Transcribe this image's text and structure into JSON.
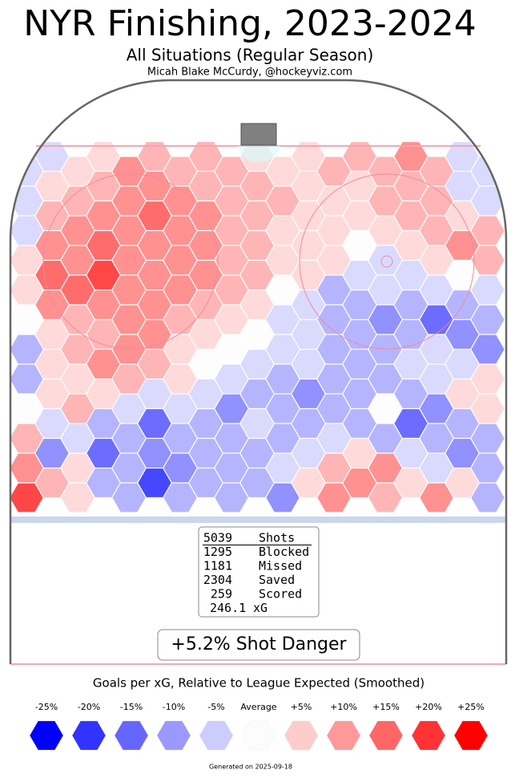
{
  "title": "NYR Finishing, 2023-2024",
  "subtitle": "All Situations (Regular Season)",
  "credit": "Micah Blake McCurdy, @hockeyviz.com",
  "hex_values": [
    [
      -5,
      5,
      10,
      10,
      5,
      5,
      10,
      15,
      -5
    ],
    [
      -5,
      5,
      15,
      10,
      10,
      5,
      10,
      10,
      10,
      -5
    ],
    [
      5,
      10,
      15,
      10,
      10,
      5,
      5,
      10,
      -5
    ],
    [
      -5,
      10,
      15,
      15,
      10,
      10,
      5,
      10,
      10,
      -5
    ],
    [
      10,
      15,
      20,
      15,
      10,
      5,
      5,
      10,
      5
    ],
    [
      -5,
      15,
      15,
      15,
      10,
      5,
      5,
      5,
      10,
      10
    ],
    [
      15,
      20,
      15,
      15,
      10,
      5,
      0,
      5,
      15
    ],
    [
      5,
      15,
      15,
      15,
      10,
      5,
      5,
      -5,
      5,
      10
    ],
    [
      20,
      25,
      15,
      15,
      10,
      5,
      -5,
      -5,
      0
    ],
    [
      5,
      20,
      15,
      15,
      10,
      0,
      -10,
      -5,
      -5,
      -5
    ],
    [
      15,
      15,
      15,
      10,
      5,
      -5,
      -10,
      -10,
      -10
    ],
    [
      0,
      10,
      15,
      10,
      5,
      -5,
      -10,
      -15,
      -20,
      -10
    ],
    [
      5,
      10,
      15,
      5,
      0,
      -5,
      -10,
      -10,
      -15
    ],
    [
      -10,
      10,
      15,
      5,
      0,
      -5,
      -10,
      -10,
      -5,
      -15
    ],
    [
      5,
      15,
      10,
      0,
      -5,
      -5,
      -10,
      -5,
      -5
    ],
    [
      -10,
      5,
      10,
      5,
      -5,
      -10,
      -10,
      -10,
      -5,
      5
    ],
    [
      5,
      5,
      -5,
      -5,
      -10,
      -15,
      -10,
      -10,
      5
    ],
    [
      0,
      10,
      -5,
      -5,
      -15,
      -10,
      -10,
      0,
      -15,
      5
    ],
    [
      -5,
      -10,
      -20,
      -10,
      -5,
      -10,
      -10,
      -20,
      -10
    ],
    [
      10,
      -5,
      -10,
      -10,
      -10,
      -10,
      -5,
      -10,
      -10,
      -10
    ],
    [
      -15,
      -20,
      -15,
      -10,
      -10,
      -5,
      5,
      -5,
      -15
    ],
    [
      15,
      5,
      -10,
      -15,
      -10,
      -5,
      10,
      15,
      -5,
      -10
    ],
    [
      10,
      -10,
      -25,
      -10,
      -10,
      5,
      15,
      5,
      5
    ],
    [
      25,
      5,
      -10,
      -10,
      -10,
      -15,
      15,
      10,
      15,
      -10
    ]
  ],
  "stats": [
    {
      "count": 5039,
      "label": "Shots"
    },
    {
      "count": 1295,
      "label": "Blocked"
    },
    {
      "count": 1181,
      "label": "Missed"
    },
    {
      "count": 2304,
      "label": "Saved"
    },
    {
      "count": 259,
      "label": "Scored"
    },
    {
      "count": 246.1,
      "label": "xG"
    }
  ],
  "shot_danger": "+5.2% Shot Danger",
  "legend": {
    "title": "Goals per xG, Relative to League Expected (Smoothed)",
    "items": [
      {
        "value": -25,
        "label": "-25%",
        "color": "#0000ff"
      },
      {
        "value": -20,
        "label": "-20%",
        "color": "#3333ff"
      },
      {
        "value": -15,
        "label": "-15%",
        "color": "#6666ff"
      },
      {
        "value": -10,
        "label": "-10%",
        "color": "#9999ff"
      },
      {
        "value": -5,
        "label": "-5%",
        "color": "#ccccff"
      },
      {
        "value": 0,
        "label": "Average",
        "color": "#fcfcfc"
      },
      {
        "value": 5,
        "label": "+5%",
        "color": "#ffcccc"
      },
      {
        "value": 10,
        "label": "+10%",
        "color": "#ff9999"
      },
      {
        "value": 15,
        "label": "+15%",
        "color": "#ff6666"
      },
      {
        "value": 20,
        "label": "+20%",
        "color": "#ff3333"
      },
      {
        "value": 25,
        "label": "+25%",
        "color": "#ff0000"
      }
    ]
  },
  "footer": "Generated on 2025-09-18"
}
